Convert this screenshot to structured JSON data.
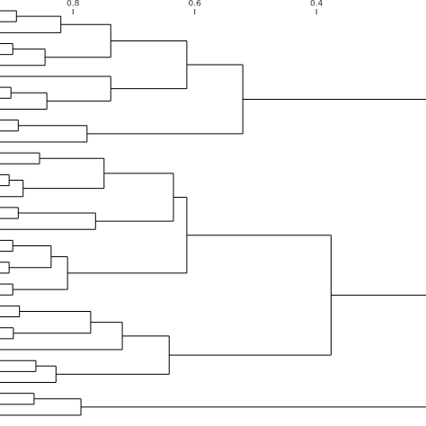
{
  "chart_data": {
    "type": "dendrogram",
    "orientation": "horizontal",
    "color": "#000000",
    "xlim": [
      0.92,
      0.22
    ],
    "xticks": [
      0.8,
      0.6,
      0.4
    ],
    "tree": [
      {
        "height": 0.521,
        "children": [
          {
            "height": 0.613,
            "children": [
              {
                "height": 0.738,
                "children": [
                  {
                    "height": 0.82,
                    "children": [
                      {
                        "height": 0.893,
                        "children": [
                          {},
                          {}
                        ]
                      },
                      {}
                    ]
                  },
                  {
                    "height": 0.846,
                    "children": [
                      {
                        "height": 0.899,
                        "children": [
                          {},
                          {}
                        ]
                      },
                      {}
                    ]
                  }
                ]
              },
              {
                "height": 0.738,
                "children": [
                  {},
                  {
                    "height": 0.843,
                    "children": [
                      {
                        "height": 0.902,
                        "children": [
                          {},
                          {}
                        ]
                      },
                      {}
                    ]
                  }
                ]
              }
            ]
          },
          {
            "height": 0.777,
            "children": [
              {
                "height": 0.89,
                "children": [
                  {},
                  {}
                ]
              },
              {}
            ]
          }
        ]
      },
      {
        "height": 0.376,
        "children": [
          {
            "height": 0.613,
            "children": [
              {
                "height": 0.635,
                "children": [
                  {
                    "height": 0.749,
                    "children": [
                      {
                        "height": 0.855,
                        "children": [
                          {},
                          {}
                        ]
                      },
                      {
                        "height": 0.882,
                        "children": [
                          {
                            "height": 0.905,
                            "children": [
                              {},
                              {}
                            ]
                          },
                          {}
                        ]
                      }
                    ]
                  },
                  {
                    "height": 0.763,
                    "children": [
                      {
                        "height": 0.89,
                        "children": [
                          {},
                          {}
                        ]
                      },
                      {}
                    ]
                  }
                ]
              },
              {
                "height": 0.809,
                "children": [
                  {
                    "height": 0.836,
                    "children": [
                      {
                        "height": 0.899,
                        "children": [
                          {},
                          {}
                        ]
                      },
                      {
                        "height": 0.905,
                        "children": [
                          {},
                          {}
                        ]
                      }
                    ]
                  },
                  {
                    "height": 0.899,
                    "children": [
                      {},
                      {}
                    ]
                  }
                ]
              }
            ]
          },
          {
            "height": 0.642,
            "children": [
              {
                "height": 0.719,
                "children": [
                  {
                    "height": 0.771,
                    "children": [
                      {
                        "height": 0.888,
                        "children": [
                          {},
                          {}
                        ]
                      },
                      {
                        "height": 0.898,
                        "children": [
                          {},
                          {}
                        ]
                      }
                    ]
                  },
                  {}
                ]
              },
              {
                "height": 0.828,
                "children": [
                  {
                    "height": 0.861,
                    "children": [
                      {},
                      {}
                    ]
                  },
                  {}
                ]
              }
            ]
          }
        ]
      },
      {
        "height": 0.787,
        "children": [
          {
            "height": 0.864,
            "children": [
              {},
              {}
            ]
          },
          {}
        ]
      }
    ]
  }
}
